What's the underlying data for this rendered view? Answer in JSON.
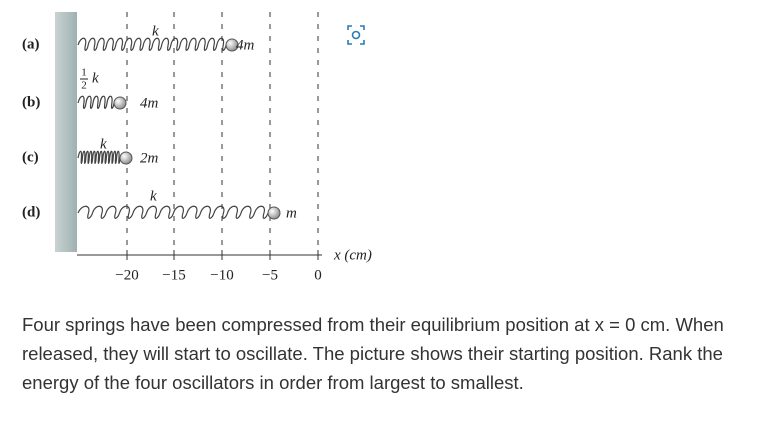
{
  "figure": {
    "rows": [
      {
        "label": "(a)",
        "spring": "k",
        "mass": "4m"
      },
      {
        "label": "(b)",
        "spring_fraction": {
          "numerator": "1",
          "denominator": "2"
        },
        "spring": "k",
        "mass": "4m"
      },
      {
        "label": "(c)",
        "spring": "k",
        "mass": "2m"
      },
      {
        "label": "(d)",
        "spring": "k",
        "mass": "m"
      }
    ],
    "axis_ticks": [
      "−20",
      "−15",
      "−10",
      "−5",
      "0"
    ],
    "axis_label": "x (cm)"
  },
  "question": "Four springs have been compressed from their equilibrium position at x = 0 cm. When released, they will start to oscillate. The picture shows their starting position. Rank the energy of the four oscillators in order from largest to smallest."
}
